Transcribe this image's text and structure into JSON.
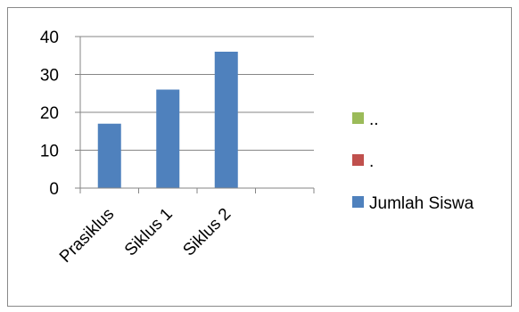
{
  "chart_data": {
    "type": "bar",
    "categories": [
      "Prasiklus",
      "Siklus 1",
      "Siklus 2",
      ""
    ],
    "series": [
      {
        "name": "Jumlah Siswa",
        "values": [
          17,
          26,
          36,
          null
        ],
        "color": "#4F81BD"
      },
      {
        "name": ".",
        "values": [
          null,
          null,
          null,
          null
        ],
        "color": "#C0504D"
      },
      {
        "name": "..",
        "values": [
          null,
          null,
          null,
          null
        ],
        "color": "#9BBB59"
      }
    ],
    "ylim": [
      0,
      40
    ],
    "yticks": [
      0,
      10,
      20,
      30,
      40
    ],
    "grid": true,
    "legend": "right",
    "legend_order": [
      "..",
      ".",
      "Jumlah Siswa"
    ]
  }
}
